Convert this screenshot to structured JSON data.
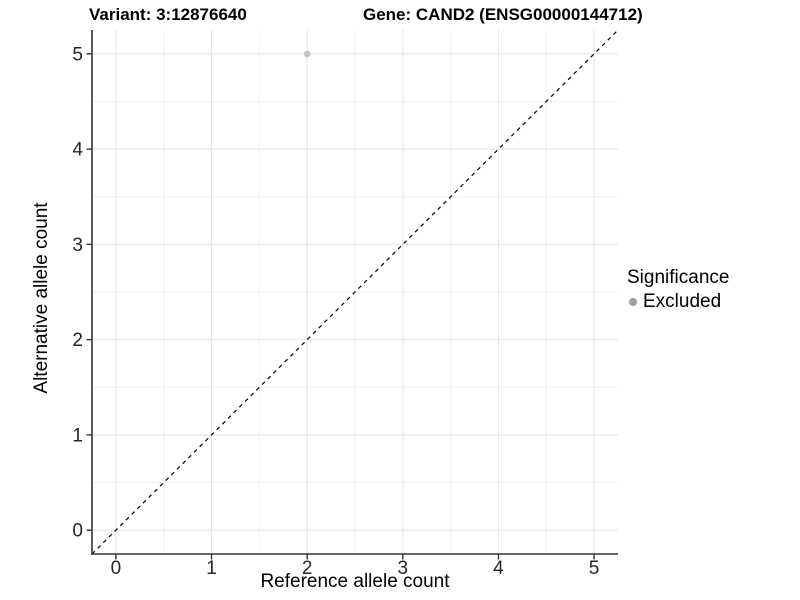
{
  "chart_data": {
    "type": "scatter",
    "title_left": "Variant: 3:12876640",
    "title_right": "Gene: CAND2 (ENSG00000144712)",
    "xlabel": "Reference allele count",
    "ylabel": "Alternative allele count",
    "xlim": [
      -0.25,
      5.25
    ],
    "ylim": [
      -0.25,
      5.25
    ],
    "xticks": [
      0,
      1,
      2,
      3,
      4,
      5
    ],
    "yticks": [
      0,
      1,
      2,
      3,
      4,
      5
    ],
    "minor_gridlines": [
      0.5,
      1.5,
      2.5,
      3.5,
      4.5
    ],
    "grid": "major and minor light-gray gridlines on white panel",
    "points": [
      {
        "x": 2,
        "y": 5,
        "significance": "Excluded"
      }
    ],
    "identity_line": {
      "equation": "y = x",
      "linetype": "dashed",
      "color": "#000000"
    },
    "legend": {
      "title": "Significance",
      "position": "right",
      "entries": [
        {
          "label": "Excluded",
          "marker": "circle",
          "color": "#a0a0a0"
        }
      ]
    }
  },
  "colors": {
    "background": "#ffffff",
    "panel_background": "#ffffff",
    "grid_major": "#e4e4e4",
    "grid_minor": "#f1f1f1",
    "axis_line": "#333333",
    "tick_mark": "#333333",
    "tick_label": "#262626",
    "title_text": "#000000",
    "point": "#c2c2c2",
    "dashed_line": "#000000",
    "legend_marker": "#a0a0a0"
  }
}
